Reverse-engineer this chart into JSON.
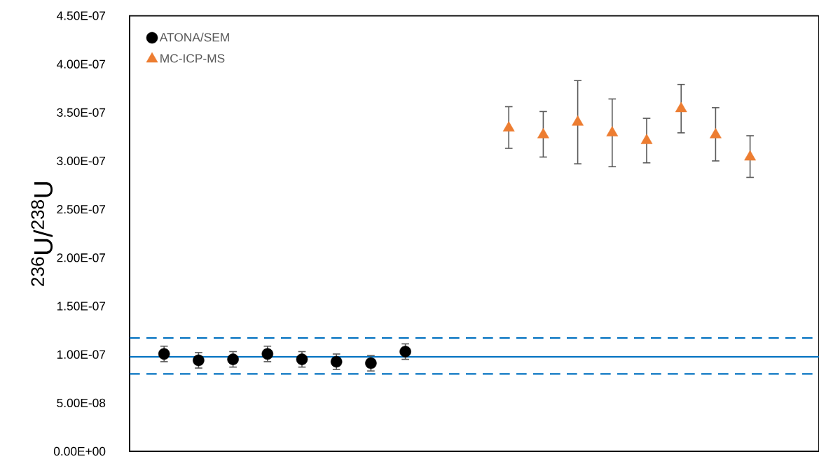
{
  "chart_data": {
    "type": "scatter",
    "ylabel": "$^{236}$U/$^{238}$U",
    "categories": [
      null,
      null,
      null,
      null,
      null,
      null,
      null,
      null,
      null,
      null,
      null,
      null,
      null,
      null,
      null,
      null,
      null,
      null,
      null
    ],
    "ylim": [
      0,
      4.5e-07
    ],
    "yticks": [
      {
        "value": 0,
        "label": "0.00E+00"
      },
      {
        "value": 5e-08,
        "label": "5.00E-08"
      },
      {
        "value": 1e-07,
        "label": "1.00E-07"
      },
      {
        "value": 1.5e-07,
        "label": "1.50E-07"
      },
      {
        "value": 2e-07,
        "label": "2.00E-07"
      },
      {
        "value": 2.5e-07,
        "label": "2.50E-07"
      },
      {
        "value": 3e-07,
        "label": "3.00E-07"
      },
      {
        "value": 3.5e-07,
        "label": "3.50E-07"
      },
      {
        "value": 4e-07,
        "label": "4.00E-07"
      },
      {
        "value": 4.5e-07,
        "label": "4.50E-07"
      }
    ],
    "tick_labels": "y",
    "legend": "top left",
    "series": [
      {
        "name": "ATONA/SEM",
        "color": "#000000",
        "marker": "circle",
        "values": [
          1.006e-07,
          9.4e-08,
          9.5e-08,
          1.006e-07,
          9.5e-08,
          9.25e-08,
          9.1e-08,
          1.03e-07,
          null,
          null,
          null,
          null,
          null,
          null,
          null,
          null,
          null,
          null,
          null
        ],
        "errors": [
          8e-09,
          8e-09,
          8e-09,
          8e-09,
          8e-09,
          8e-09,
          8e-09,
          8e-09,
          null,
          null,
          null,
          null,
          null,
          null,
          null,
          null,
          null,
          null,
          null
        ]
      },
      {
        "name": "MC-ICP-MS",
        "color": "#ed7d31",
        "marker": "triangle",
        "values": [
          null,
          null,
          null,
          null,
          null,
          null,
          null,
          null,
          null,
          null,
          3.34e-07,
          3.27e-07,
          3.4e-07,
          3.29e-07,
          3.21e-07,
          3.54e-07,
          3.27e-07,
          3.04e-07,
          null
        ],
        "errors": [
          null,
          null,
          null,
          null,
          null,
          null,
          null,
          null,
          null,
          null,
          [
            3.13e-07,
            3.56e-07
          ],
          [
            3.04e-07,
            3.51e-07
          ],
          [
            2.97e-07,
            3.83e-07
          ],
          [
            2.94e-07,
            3.64e-07
          ],
          [
            2.98e-07,
            3.44e-07
          ],
          [
            3.29e-07,
            3.79e-07
          ],
          [
            3e-07,
            3.55e-07
          ],
          [
            2.83e-07,
            3.26e-07
          ],
          null
        ]
      }
    ],
    "ref_lines": [
      {
        "axis": "y",
        "value": 9.77e-08,
        "color": "#0070c0",
        "line_style": "solid"
      },
      {
        "axis": "y",
        "value": 1.17e-07,
        "color": "#0070c0",
        "line_style": "dashed"
      },
      {
        "axis": "y",
        "value": 8e-08,
        "color": "#0070c0",
        "line_style": "dashed"
      }
    ]
  }
}
